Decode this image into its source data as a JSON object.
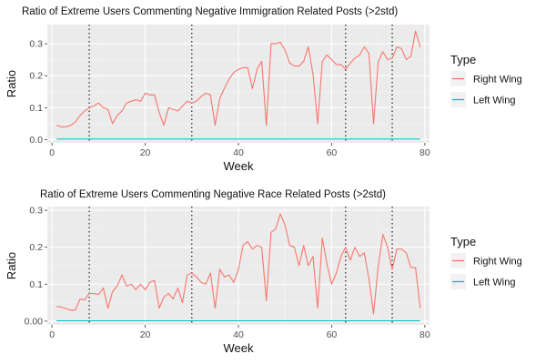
{
  "chart_data": [
    {
      "type": "line",
      "title": "Ratio of Extreme Users Commenting Negative Immigration Related Posts (>2std)",
      "xlabel": "Week",
      "ylabel": "Ratio",
      "xlim": [
        -1,
        81
      ],
      "ylim": [
        -0.01,
        0.36
      ],
      "xticks": [
        0,
        20,
        40,
        60,
        80
      ],
      "yticks": [
        0.0,
        0.1,
        0.2,
        0.3
      ],
      "ytick_labels": [
        "0.0",
        "0.1",
        "0.2",
        "0.3"
      ],
      "vlines": [
        8,
        30,
        63,
        73
      ],
      "grid": true,
      "legend": {
        "title": "Type",
        "position": "right"
      },
      "series": [
        {
          "name": "Right Wing",
          "color": "#F8766D",
          "x": [
            1,
            2,
            3,
            4,
            5,
            6,
            7,
            8,
            9,
            10,
            11,
            12,
            13,
            14,
            15,
            16,
            17,
            18,
            19,
            20,
            21,
            22,
            23,
            24,
            25,
            26,
            27,
            28,
            29,
            30,
            31,
            32,
            33,
            34,
            35,
            36,
            37,
            38,
            39,
            40,
            41,
            42,
            43,
            44,
            45,
            46,
            47,
            48,
            49,
            50,
            51,
            52,
            53,
            54,
            55,
            56,
            57,
            58,
            59,
            60,
            61,
            62,
            63,
            64,
            65,
            66,
            67,
            68,
            69,
            70,
            71,
            72,
            73,
            74,
            75,
            76,
            77,
            78,
            79
          ],
          "values": [
            0.045,
            0.04,
            0.04,
            0.045,
            0.055,
            0.075,
            0.09,
            0.1,
            0.105,
            0.115,
            0.1,
            0.095,
            0.05,
            0.075,
            0.09,
            0.115,
            0.12,
            0.125,
            0.12,
            0.145,
            0.14,
            0.14,
            0.085,
            0.045,
            0.1,
            0.095,
            0.09,
            0.105,
            0.12,
            0.115,
            0.12,
            0.135,
            0.145,
            0.14,
            0.045,
            0.13,
            0.16,
            0.19,
            0.21,
            0.22,
            0.225,
            0.225,
            0.16,
            0.22,
            0.245,
            0.045,
            0.3,
            0.3,
            0.305,
            0.28,
            0.24,
            0.23,
            0.23,
            0.245,
            0.29,
            0.205,
            0.05,
            0.245,
            0.265,
            0.25,
            0.235,
            0.235,
            0.22,
            0.24,
            0.255,
            0.265,
            0.29,
            0.27,
            0.05,
            0.245,
            0.275,
            0.25,
            0.255,
            0.29,
            0.285,
            0.25,
            0.26,
            0.34,
            0.29
          ]
        },
        {
          "name": "Left Wing",
          "color": "#00BFC4",
          "x": [
            1,
            79
          ],
          "values": [
            0.002,
            0.002
          ]
        }
      ]
    },
    {
      "type": "line",
      "title": "Ratio of Extreme Users Commenting Negative Race Related Posts (>2std)",
      "xlabel": "Week",
      "ylabel": "Ratio",
      "xlim": [
        -1,
        81
      ],
      "ylim": [
        -0.01,
        0.31
      ],
      "xticks": [
        0,
        20,
        40,
        60,
        80
      ],
      "yticks": [
        0.0,
        0.1,
        0.2,
        0.3
      ],
      "ytick_labels": [
        "0.00",
        "0.1",
        "0.2",
        "0.3"
      ],
      "vlines": [
        8,
        30,
        63,
        73
      ],
      "grid": true,
      "legend": {
        "title": "Type",
        "position": "right"
      },
      "series": [
        {
          "name": "Right Wing",
          "color": "#F8766D",
          "x": [
            1,
            2,
            3,
            4,
            5,
            6,
            7,
            8,
            9,
            10,
            11,
            12,
            13,
            14,
            15,
            16,
            17,
            18,
            19,
            20,
            21,
            22,
            23,
            24,
            25,
            26,
            27,
            28,
            29,
            30,
            31,
            32,
            33,
            34,
            35,
            36,
            37,
            38,
            39,
            40,
            41,
            42,
            43,
            44,
            45,
            46,
            47,
            48,
            49,
            50,
            51,
            52,
            53,
            54,
            55,
            56,
            57,
            58,
            59,
            60,
            61,
            62,
            63,
            64,
            65,
            66,
            67,
            68,
            69,
            70,
            71,
            72,
            73,
            74,
            75,
            76,
            77,
            78,
            79
          ],
          "values": [
            0.04,
            0.038,
            0.034,
            0.03,
            0.03,
            0.06,
            0.058,
            0.075,
            0.075,
            0.072,
            0.09,
            0.035,
            0.08,
            0.095,
            0.125,
            0.095,
            0.1,
            0.085,
            0.1,
            0.085,
            0.105,
            0.11,
            0.035,
            0.065,
            0.075,
            0.06,
            0.09,
            0.05,
            0.125,
            0.13,
            0.12,
            0.105,
            0.1,
            0.13,
            0.035,
            0.14,
            0.12,
            0.125,
            0.105,
            0.14,
            0.205,
            0.215,
            0.195,
            0.205,
            0.2,
            0.055,
            0.24,
            0.25,
            0.29,
            0.26,
            0.205,
            0.2,
            0.15,
            0.205,
            0.15,
            0.175,
            0.035,
            0.225,
            0.155,
            0.1,
            0.13,
            0.175,
            0.2,
            0.165,
            0.2,
            0.175,
            0.185,
            0.115,
            0.02,
            0.15,
            0.235,
            0.2,
            0.14,
            0.195,
            0.195,
            0.185,
            0.145,
            0.145,
            0.035
          ]
        },
        {
          "name": "Left Wing",
          "color": "#00BFC4",
          "x": [
            1,
            79
          ],
          "values": [
            0.001,
            0.001
          ]
        }
      ]
    }
  ]
}
